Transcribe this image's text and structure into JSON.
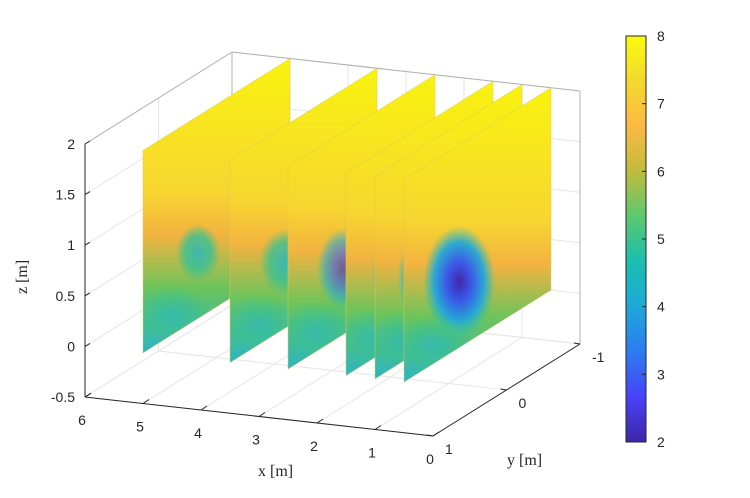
{
  "chart_data": {
    "type": "slice",
    "xlabel": "x [m]",
    "ylabel": "y [m]",
    "zlabel": "z [m]",
    "x_ticks": [
      "6",
      "5",
      "4",
      "3",
      "2",
      "1",
      "0"
    ],
    "y_ticks": [
      "-1",
      "0",
      "1"
    ],
    "z_ticks": [
      "2",
      "1.5",
      "1",
      "0.5",
      "0",
      "-0.5"
    ],
    "xlim": [
      0,
      6
    ],
    "ylim": [
      -1,
      1
    ],
    "zlim": [
      -0.5,
      2
    ],
    "slice_x": [
      5,
      3.5,
      2.5,
      1.5,
      1,
      0.5
    ],
    "slice_extent": {
      "y": [
        1,
        -1
      ],
      "z": [
        0,
        2
      ]
    },
    "colorbar": {
      "ticks": [
        "8",
        "7",
        "6",
        "5",
        "4",
        "3",
        "2"
      ],
      "range": [
        2,
        8
      ],
      "colormap": "parula",
      "colors": [
        "#3e26a8",
        "#4743f8",
        "#2c7cf0",
        "#1ca9d9",
        "#1bbeb0",
        "#5cc86e",
        "#c0bc3c",
        "#fdb943",
        "#f4d82d",
        "#f9fb0e"
      ]
    },
    "grid": true
  }
}
